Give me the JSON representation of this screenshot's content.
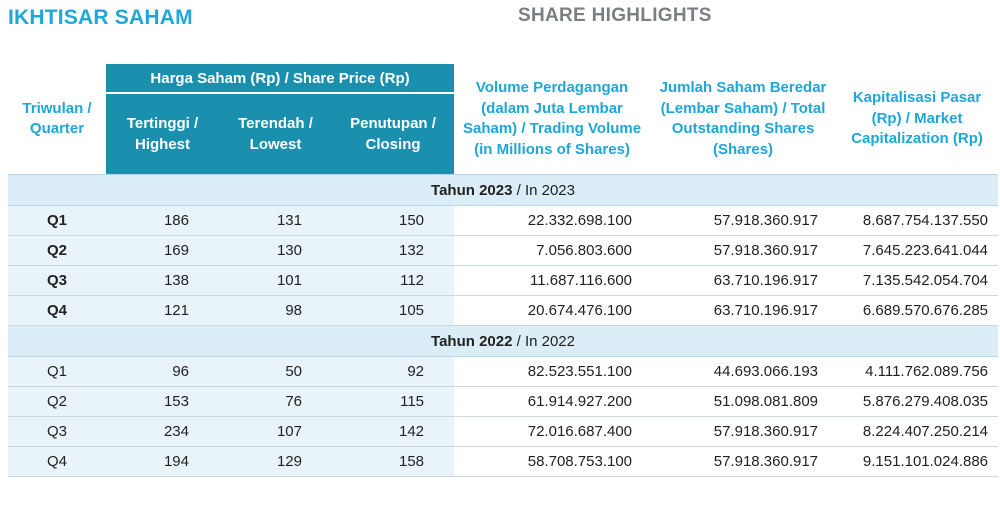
{
  "titles": {
    "left": "IKHTISAR SAHAM",
    "center": "SHARE HIGHLIGHTS"
  },
  "headers": {
    "quarter_id": "Triwulan /",
    "quarter_en": "Quarter",
    "price_group_id": "Harga Saham (Rp)",
    "price_group_en": " / Share Price (Rp)",
    "highest_id": "Tertinggi /",
    "highest_en": "Highest",
    "lowest_id": "Terendah /",
    "lowest_en": "Lowest",
    "closing_id": "Penutupan /",
    "closing_en": "Closing",
    "volume_id": "Volume Perdagangan (dalam Juta Lembar Saham)",
    "volume_en": " / Trading Volume (in Millions of Shares)",
    "outstanding_id": "Jumlah Saham Beredar (Lembar Saham)",
    "outstanding_en": " / Total Outstanding Shares (Shares)",
    "market_cap_id": "Kapitalisasi Pasar (Rp)",
    "market_cap_en": " / Market Capitalization (Rp)"
  },
  "year_2023": {
    "label_id": "Tahun 2023",
    "label_en": " / In 2023",
    "rows": [
      {
        "quarter": "Q1",
        "highest": "186",
        "lowest": "131",
        "closing": "150",
        "volume": "22.332.698.100",
        "outstanding": "57.918.360.917",
        "market_cap": "8.687.754.137.550"
      },
      {
        "quarter": "Q2",
        "highest": "169",
        "lowest": "130",
        "closing": "132",
        "volume": "7.056.803.600",
        "outstanding": "57.918.360.917",
        "market_cap": "7.645.223.641.044"
      },
      {
        "quarter": "Q3",
        "highest": "138",
        "lowest": "101",
        "closing": "112",
        "volume": "11.687.116.600",
        "outstanding": "63.710.196.917",
        "market_cap": "7.135.542.054.704"
      },
      {
        "quarter": "Q4",
        "highest": "121",
        "lowest": "98",
        "closing": "105",
        "volume": "20.674.476.100",
        "outstanding": "63.710.196.917",
        "market_cap": "6.689.570.676.285"
      }
    ]
  },
  "year_2022": {
    "label_id": "Tahun 2022",
    "label_en": " / In 2022",
    "rows": [
      {
        "quarter": "Q1",
        "highest": "96",
        "lowest": "50",
        "closing": "92",
        "volume": "82.523.551.100",
        "outstanding": "44.693.066.193",
        "market_cap": "4.111.762.089.756"
      },
      {
        "quarter": "Q2",
        "highest": "153",
        "lowest": "76",
        "closing": "115",
        "volume": "61.914.927.200",
        "outstanding": "51.098.081.809",
        "market_cap": "5.876.279.408.035"
      },
      {
        "quarter": "Q3",
        "highest": "234",
        "lowest": "107",
        "closing": "142",
        "volume": "72.016.687.400",
        "outstanding": "57.918.360.917",
        "market_cap": "8.224.407.250.214"
      },
      {
        "quarter": "Q4",
        "highest": "194",
        "lowest": "129",
        "closing": "158",
        "volume": "58.708.753.100",
        "outstanding": "57.918.360.917",
        "market_cap": "9.151.101.024.886"
      }
    ]
  },
  "colors": {
    "accent": "#1ea7d8",
    "header_fill": "#1b8fae",
    "year_band": "#dbeef7",
    "title_gray": "#7a7f84"
  }
}
